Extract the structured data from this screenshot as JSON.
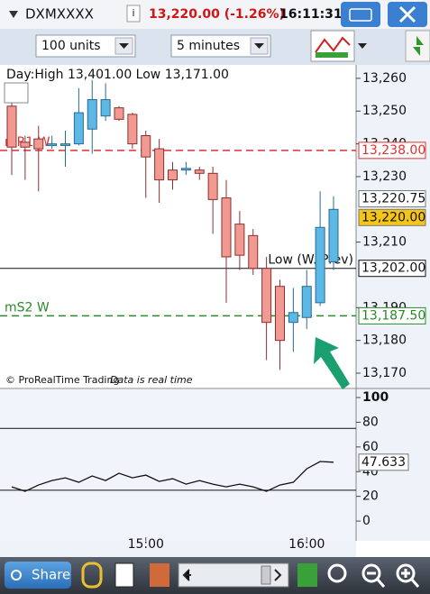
{
  "header": {
    "symbol": "DXMXXXX",
    "price": "13,220.00 (-1.26%)",
    "time": "16:11:31"
  },
  "toolbar": {
    "quantity": "100 units",
    "interval": "5 minutes"
  },
  "bottom_bar": {
    "share": "Share"
  },
  "chart_data": [
    {
      "type": "candlestick",
      "annotation": "Day:High 13,401.00 Low 13,171.00",
      "copyright": "© ProRealTime Trading",
      "note": "Data is real time",
      "categories": [
        null,
        null,
        null,
        null,
        null,
        null,
        null,
        null,
        null,
        null,
        "15:00",
        null,
        null,
        null,
        null,
        null,
        null,
        null,
        null,
        null,
        null,
        null,
        "16:00",
        null,
        null
      ],
      "open": [
        13251.5,
        13240.5,
        13241.5,
        13239.5,
        13239.5,
        13240,
        13244.5,
        13248.5,
        13251,
        13249,
        13242.5,
        13238.5,
        13232,
        13232,
        13232,
        13231,
        13223.5,
        13215.5,
        13212,
        13202,
        13196.5,
        13185.5,
        13187,
        13191.5,
        13204
      ],
      "high": [
        13253.5,
        13242.5,
        13245.5,
        13242.5,
        13244,
        13257,
        13259.5,
        13258.5,
        13251.5,
        13249.5,
        13244,
        13241.5,
        13234.5,
        13234.5,
        13233,
        13233,
        13229,
        13219.5,
        13214,
        13205.5,
        13198.5,
        13196,
        13201.5,
        13225.5,
        13224
      ],
      "low": [
        13230.5,
        13229,
        13225.5,
        13238.5,
        13233,
        13239.5,
        13237,
        13247,
        13247,
        13238.5,
        13223.5,
        13222,
        13226,
        13230.5,
        13229,
        13212.5,
        13191.5,
        13201.5,
        13200,
        13174,
        13171,
        13176.5,
        13183.5,
        13190.5,
        13201.5
      ],
      "close": [
        13239,
        13239,
        13238.5,
        13240,
        13240,
        13249.5,
        13253.5,
        13253.5,
        13247.5,
        13240,
        13236,
        13229,
        13229,
        13232.5,
        13231,
        13223,
        13205.5,
        13206,
        13202,
        13185.5,
        13180,
        13188.5,
        13196.5,
        13214.5,
        13220
      ],
      "up_color": "#5cb8e4",
      "down_color": "#f29a91",
      "ylim": [
        13165.6,
        13264.1
      ],
      "yticks": [
        {
          "value": 13260,
          "label": "13,260"
        },
        {
          "value": 13250,
          "label": "13,250"
        },
        {
          "value": 13240,
          "label": "13,240"
        },
        {
          "value": 13230,
          "label": "13,230"
        },
        {
          "value": 13210,
          "label": "13,210"
        },
        {
          "value": 13190,
          "label": "13,190"
        },
        {
          "value": 13180,
          "label": "13,180"
        },
        {
          "value": 13170,
          "label": "13,170"
        }
      ],
      "levels": [
        {
          "name": "mR1 W",
          "value": 13238,
          "value_label": "13,238.00",
          "color": "#e03030",
          "style": "dashed"
        },
        {
          "name": "Low (W. Prev)",
          "value": 13202,
          "value_label": "13,202.00",
          "color": "#111111",
          "style": "solid"
        },
        {
          "name": "mS2 W",
          "value": 13187.5,
          "value_label": "13,187.50",
          "color": "#2a8a2a",
          "style": "dashed"
        }
      ],
      "price_labels": [
        {
          "value": 13220.75,
          "label": "13,220.75",
          "color": "#ffffff"
        },
        {
          "value": 13220,
          "label": "13,220.00",
          "color": "#f5c518"
        }
      ]
    },
    {
      "type": "line",
      "series": [
        {
          "color": "#111111",
          "values": [
            27.7,
            24.1,
            29.2,
            32.8,
            35.0,
            31.4,
            36.5,
            32.8,
            38.7,
            35.0,
            37.2,
            32.1,
            34.3,
            29.9,
            32.8,
            29.9,
            27.7,
            29.9,
            27.7,
            24.1,
            29.2,
            31.4,
            42.3,
            48.2,
            47.633
          ]
        }
      ],
      "ylim": [
        -16,
        106.6
      ],
      "yticks": [
        0,
        20,
        40,
        60,
        80,
        100
      ],
      "levels": [
        75,
        25
      ]
    }
  ]
}
